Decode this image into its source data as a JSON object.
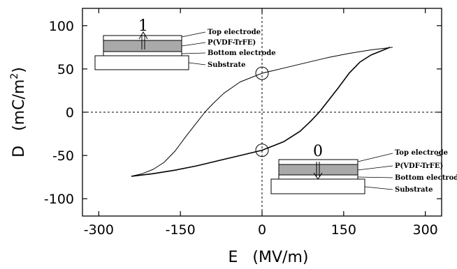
{
  "chart_data": {
    "type": "line",
    "title": "",
    "xlabel": "E   (MV/m)",
    "ylabel": "D   (mC/m",
    "ylabel_sup": "2",
    "ylabel_close": ")",
    "xlim": [
      -330,
      330
    ],
    "ylim": [
      -120,
      120
    ],
    "xticks": [
      -300,
      -150,
      0,
      150,
      300
    ],
    "xtick_labels": [
      "-300",
      "-150",
      "0",
      "150",
      "300"
    ],
    "yticks": [
      -100,
      -50,
      0,
      50,
      100
    ],
    "ytick_labels": [
      "-100",
      "-50",
      "0",
      "50",
      "100"
    ],
    "grid": false,
    "series": [
      {
        "branch": "upper",
        "x": [
          240,
          200,
          160,
          120,
          80,
          40,
          0,
          -40,
          -70,
          -90,
          -105,
          -120,
          -140,
          -160,
          -180,
          -200,
          -220,
          -240
        ],
        "y": [
          75,
          72,
          68,
          63,
          57,
          51,
          45,
          35,
          22,
          10,
          0,
          -12,
          -28,
          -45,
          -58,
          -66,
          -71,
          -74
        ]
      },
      {
        "branch": "lower",
        "x": [
          -240,
          -200,
          -160,
          -120,
          -80,
          -40,
          0,
          40,
          70,
          90,
          105,
          120,
          140,
          160,
          180,
          200,
          220,
          235
        ],
        "y": [
          -74,
          -71,
          -67,
          -62,
          -56,
          -50,
          -44,
          -34,
          -22,
          -10,
          0,
          12,
          28,
          45,
          58,
          66,
          71,
          75
        ]
      }
    ],
    "remanent_markers": [
      {
        "x": 0,
        "y": 45
      },
      {
        "x": 0,
        "y": -44
      }
    ],
    "annotations": {
      "state_1": "1",
      "state_0": "0",
      "top_electrode": "Top electrode",
      "pvdf": "P(VDF-TrFE)",
      "bottom_electrode": "Bottom electrode",
      "substrate": "Substrate"
    }
  }
}
